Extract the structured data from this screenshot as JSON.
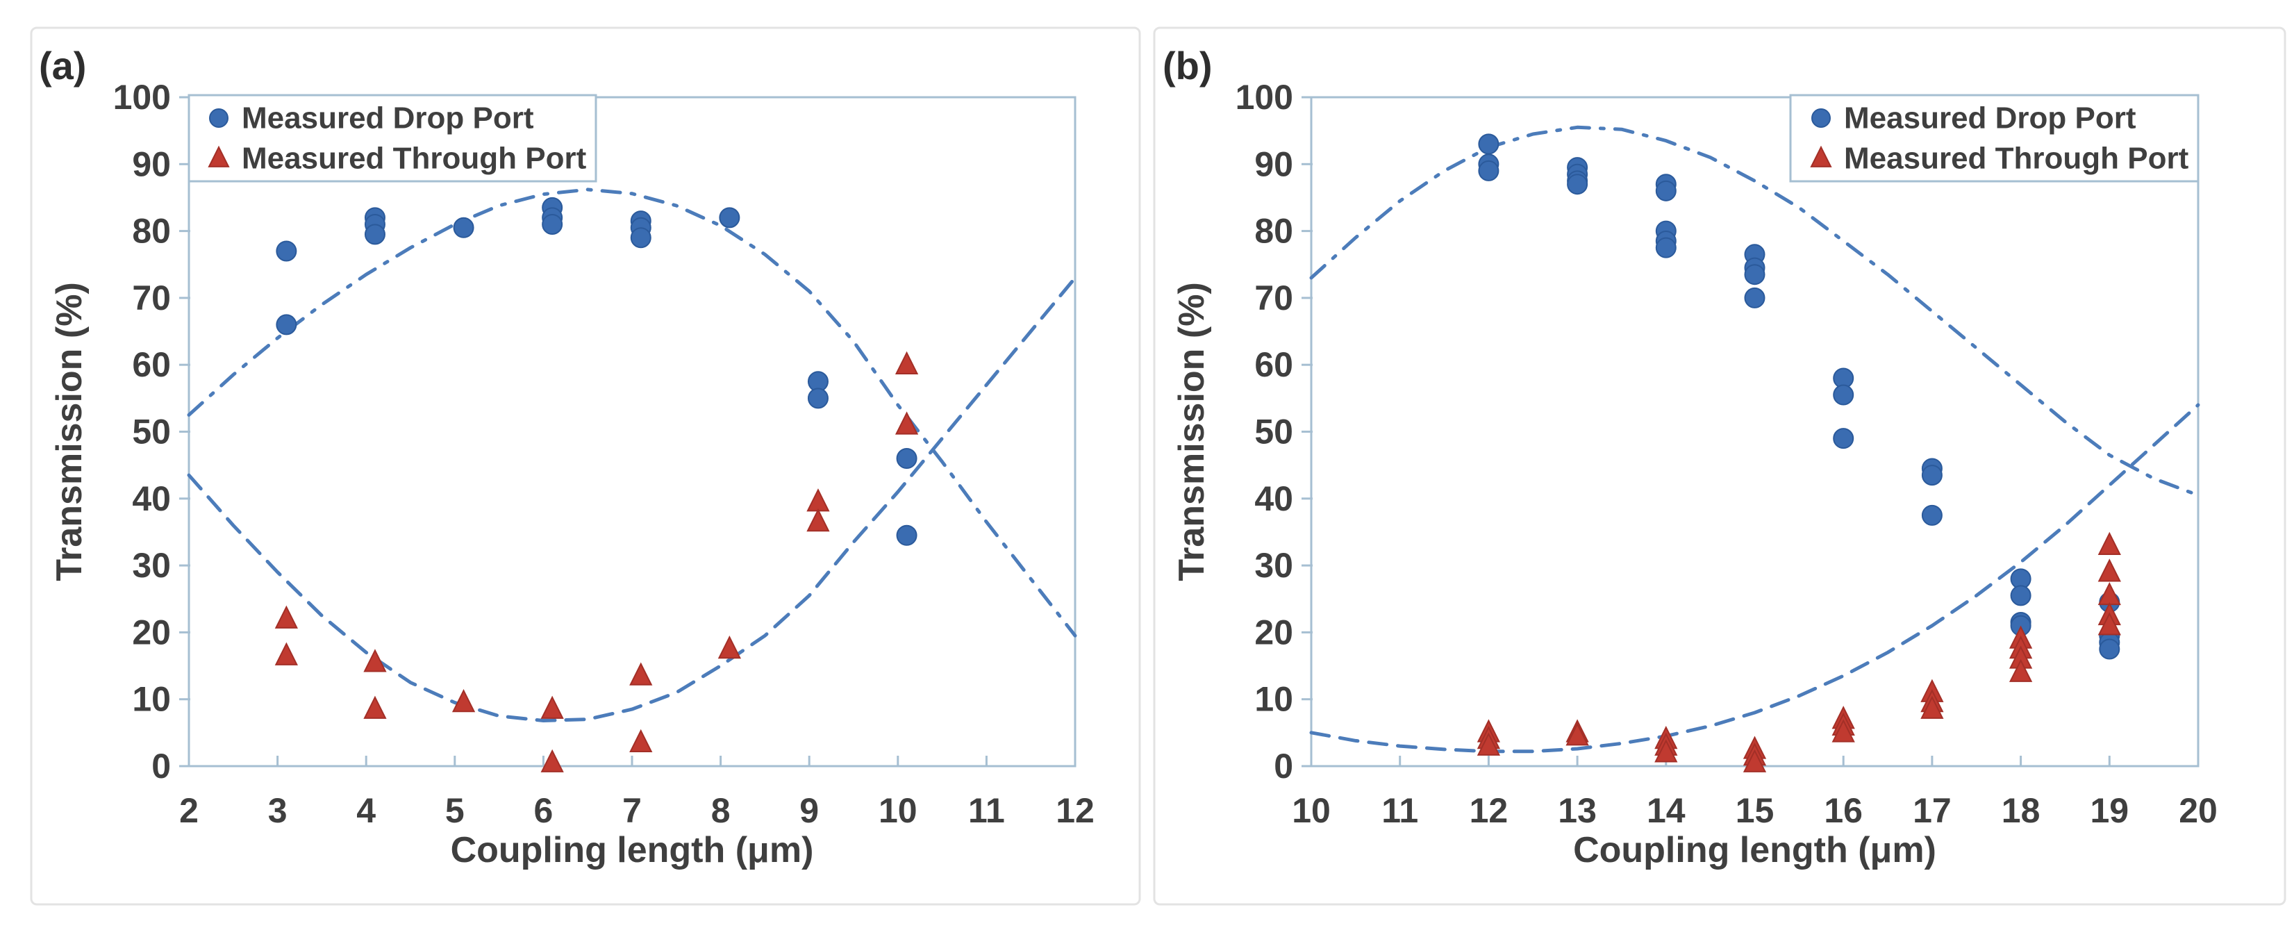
{
  "colors": {
    "background": "#ffffff",
    "panel_border": "#e3e3e3",
    "panel_fill": "#ffffff",
    "axis_line": "#a6bfd2",
    "text": "#3f3f3f",
    "drop_marker_fill": "#3a6cb1",
    "drop_marker_edge": "#2b5a9b",
    "through_marker_fill": "#c03a30",
    "through_marker_edge": "#a32f27",
    "fit_curve": "#4c7cba"
  },
  "chart_data": [
    {
      "panel_label": "(a)",
      "type": "scatter",
      "xlabel": "Coupling length (μm)",
      "ylabel": "Transmission (%)",
      "xlim": [
        2,
        12
      ],
      "ylim": [
        0,
        100
      ],
      "x_ticks": [
        2,
        3,
        4,
        5,
        6,
        7,
        8,
        9,
        10,
        11,
        12
      ],
      "y_ticks": [
        0,
        10,
        20,
        30,
        40,
        50,
        60,
        70,
        80,
        90,
        100
      ],
      "grid": false,
      "legend": {
        "position": "top-left",
        "entries": [
          {
            "label": "Measured Drop Port",
            "marker": "circle"
          },
          {
            "label": "Measured Through Port",
            "marker": "triangle"
          }
        ]
      },
      "series": [
        {
          "name": "Measured Drop Port",
          "marker": "circle",
          "points": [
            [
              3.1,
              77
            ],
            [
              3.1,
              66
            ],
            [
              4.1,
              82
            ],
            [
              4.1,
              81
            ],
            [
              4.1,
              79.5
            ],
            [
              5.1,
              80.5
            ],
            [
              6.1,
              83.5
            ],
            [
              6.1,
              82
            ],
            [
              6.1,
              81
            ],
            [
              7.1,
              81.5
            ],
            [
              7.1,
              80.5
            ],
            [
              7.1,
              79
            ],
            [
              8.1,
              82
            ],
            [
              9.1,
              57.5
            ],
            [
              9.1,
              55
            ],
            [
              10.1,
              46
            ],
            [
              10.1,
              34.5
            ]
          ]
        },
        {
          "name": "Measured Through Port",
          "marker": "triangle",
          "points": [
            [
              3.1,
              22
            ],
            [
              3.1,
              16.5
            ],
            [
              4.1,
              15.5
            ],
            [
              4.1,
              8.5
            ],
            [
              5.1,
              9.5
            ],
            [
              6.1,
              8.5
            ],
            [
              6.1,
              0.5
            ],
            [
              7.1,
              13.5
            ],
            [
              7.1,
              3.5
            ],
            [
              8.1,
              17.5
            ],
            [
              9.1,
              39.5
            ],
            [
              9.1,
              36.5
            ],
            [
              10.1,
              60
            ],
            [
              10.1,
              51
            ]
          ]
        },
        {
          "name": "Drop Port fit",
          "marker": "none",
          "style": "dash-dot",
          "curve": [
            [
              2,
              52.5
            ],
            [
              2.5,
              58.5
            ],
            [
              3,
              64
            ],
            [
              3.5,
              69
            ],
            [
              4,
              73.5
            ],
            [
              4.5,
              77.5
            ],
            [
              5,
              81
            ],
            [
              5.5,
              83.8
            ],
            [
              6,
              85.5
            ],
            [
              6.5,
              86.2
            ],
            [
              7,
              85.6
            ],
            [
              7.5,
              83.8
            ],
            [
              8,
              80.8
            ],
            [
              8.5,
              76.5
            ],
            [
              9,
              71
            ],
            [
              9.5,
              63.5
            ],
            [
              10,
              54
            ],
            [
              10.5,
              45.5
            ],
            [
              11,
              36.5
            ],
            [
              11.5,
              28
            ],
            [
              12,
              19.5
            ]
          ]
        },
        {
          "name": "Through Port fit",
          "marker": "none",
          "style": "dashed",
          "curve": [
            [
              2,
              43.5
            ],
            [
              2.5,
              36
            ],
            [
              3,
              29
            ],
            [
              3.5,
              22.5
            ],
            [
              4,
              17
            ],
            [
              4.5,
              12.5
            ],
            [
              5,
              9.5
            ],
            [
              5.5,
              7.5
            ],
            [
              6,
              6.8
            ],
            [
              6.5,
              7
            ],
            [
              7,
              8.5
            ],
            [
              7.5,
              11
            ],
            [
              8,
              15
            ],
            [
              8.5,
              19.5
            ],
            [
              9,
              25.5
            ],
            [
              9.5,
              33.5
            ],
            [
              10,
              41
            ],
            [
              10.5,
              49
            ],
            [
              11,
              57
            ],
            [
              11.5,
              65
            ],
            [
              12,
              73
            ]
          ]
        }
      ]
    },
    {
      "panel_label": "(b)",
      "type": "scatter",
      "xlabel": "Coupling length (μm)",
      "ylabel": "Transmission (%)",
      "xlim": [
        10,
        20
      ],
      "ylim": [
        0,
        100
      ],
      "x_ticks": [
        10,
        11,
        12,
        13,
        14,
        15,
        16,
        17,
        18,
        19,
        20
      ],
      "y_ticks": [
        0,
        10,
        20,
        30,
        40,
        50,
        60,
        70,
        80,
        90,
        100
      ],
      "grid": false,
      "legend": {
        "position": "top-right",
        "entries": [
          {
            "label": "Measured Drop Port",
            "marker": "circle"
          },
          {
            "label": "Measured Through Port",
            "marker": "triangle"
          }
        ]
      },
      "series": [
        {
          "name": "Measured Drop Port",
          "marker": "circle",
          "points": [
            [
              12,
              93
            ],
            [
              12,
              90
            ],
            [
              12,
              89
            ],
            [
              13,
              89.5
            ],
            [
              13,
              88.5
            ],
            [
              13,
              87.5
            ],
            [
              13,
              87
            ],
            [
              14,
              87
            ],
            [
              14,
              86
            ],
            [
              14,
              80
            ],
            [
              14,
              78.5
            ],
            [
              14,
              77.5
            ],
            [
              15,
              76.5
            ],
            [
              15,
              74.5
            ],
            [
              15,
              73.5
            ],
            [
              15,
              70
            ],
            [
              16,
              58
            ],
            [
              16,
              55.5
            ],
            [
              16,
              49
            ],
            [
              17,
              44.5
            ],
            [
              17,
              43.5
            ],
            [
              17,
              37.5
            ],
            [
              18,
              28
            ],
            [
              18,
              25.5
            ],
            [
              18,
              21.5
            ],
            [
              18,
              21
            ],
            [
              19,
              24.5
            ],
            [
              19,
              19.5
            ],
            [
              19,
              18.5
            ],
            [
              19,
              17.5
            ]
          ]
        },
        {
          "name": "Measured Through Port",
          "marker": "triangle",
          "points": [
            [
              12,
              5
            ],
            [
              12,
              4
            ],
            [
              12,
              3
            ],
            [
              13,
              5
            ],
            [
              13,
              4.5
            ],
            [
              14,
              4
            ],
            [
              14,
              3
            ],
            [
              14,
              2
            ],
            [
              15,
              2.5
            ],
            [
              15,
              1.5
            ],
            [
              15,
              0.5
            ],
            [
              16,
              7
            ],
            [
              16,
              6
            ],
            [
              16,
              5
            ],
            [
              17,
              11
            ],
            [
              17,
              9.5
            ],
            [
              17,
              8.5
            ],
            [
              18,
              19
            ],
            [
              18,
              17.5
            ],
            [
              18,
              16
            ],
            [
              18,
              14
            ],
            [
              19,
              33
            ],
            [
              19,
              29
            ],
            [
              19,
              25.5
            ],
            [
              19,
              22.5
            ],
            [
              19,
              21
            ]
          ]
        },
        {
          "name": "Drop Port fit",
          "marker": "none",
          "style": "dash-dot",
          "curve": [
            [
              10,
              73
            ],
            [
              10.5,
              79
            ],
            [
              11,
              84.5
            ],
            [
              11.5,
              89
            ],
            [
              12,
              92.5
            ],
            [
              12.5,
              94.5
            ],
            [
              13,
              95.5
            ],
            [
              13.5,
              95.2
            ],
            [
              14,
              93.5
            ],
            [
              14.5,
              91
            ],
            [
              15,
              87.5
            ],
            [
              15.5,
              83.5
            ],
            [
              16,
              78.5
            ],
            [
              16.5,
              73.5
            ],
            [
              17,
              68
            ],
            [
              17.5,
              62.5
            ],
            [
              18,
              57
            ],
            [
              18.5,
              51.5
            ],
            [
              19,
              46.5
            ],
            [
              19.5,
              43
            ],
            [
              20,
              40.5
            ]
          ]
        },
        {
          "name": "Through Port fit",
          "marker": "none",
          "style": "dashed",
          "curve": [
            [
              10,
              5
            ],
            [
              10.5,
              3.8
            ],
            [
              11,
              3
            ],
            [
              11.5,
              2.5
            ],
            [
              12,
              2.2
            ],
            [
              12.5,
              2.2
            ],
            [
              13,
              2.6
            ],
            [
              13.5,
              3.4
            ],
            [
              14,
              4.5
            ],
            [
              14.5,
              6
            ],
            [
              15,
              8
            ],
            [
              15.5,
              10.5
            ],
            [
              16,
              13.5
            ],
            [
              16.5,
              17
            ],
            [
              17,
              21
            ],
            [
              17.5,
              25.5
            ],
            [
              18,
              30.5
            ],
            [
              18.5,
              36
            ],
            [
              19,
              42
            ],
            [
              19.5,
              48
            ],
            [
              20,
              54
            ]
          ]
        }
      ]
    }
  ]
}
